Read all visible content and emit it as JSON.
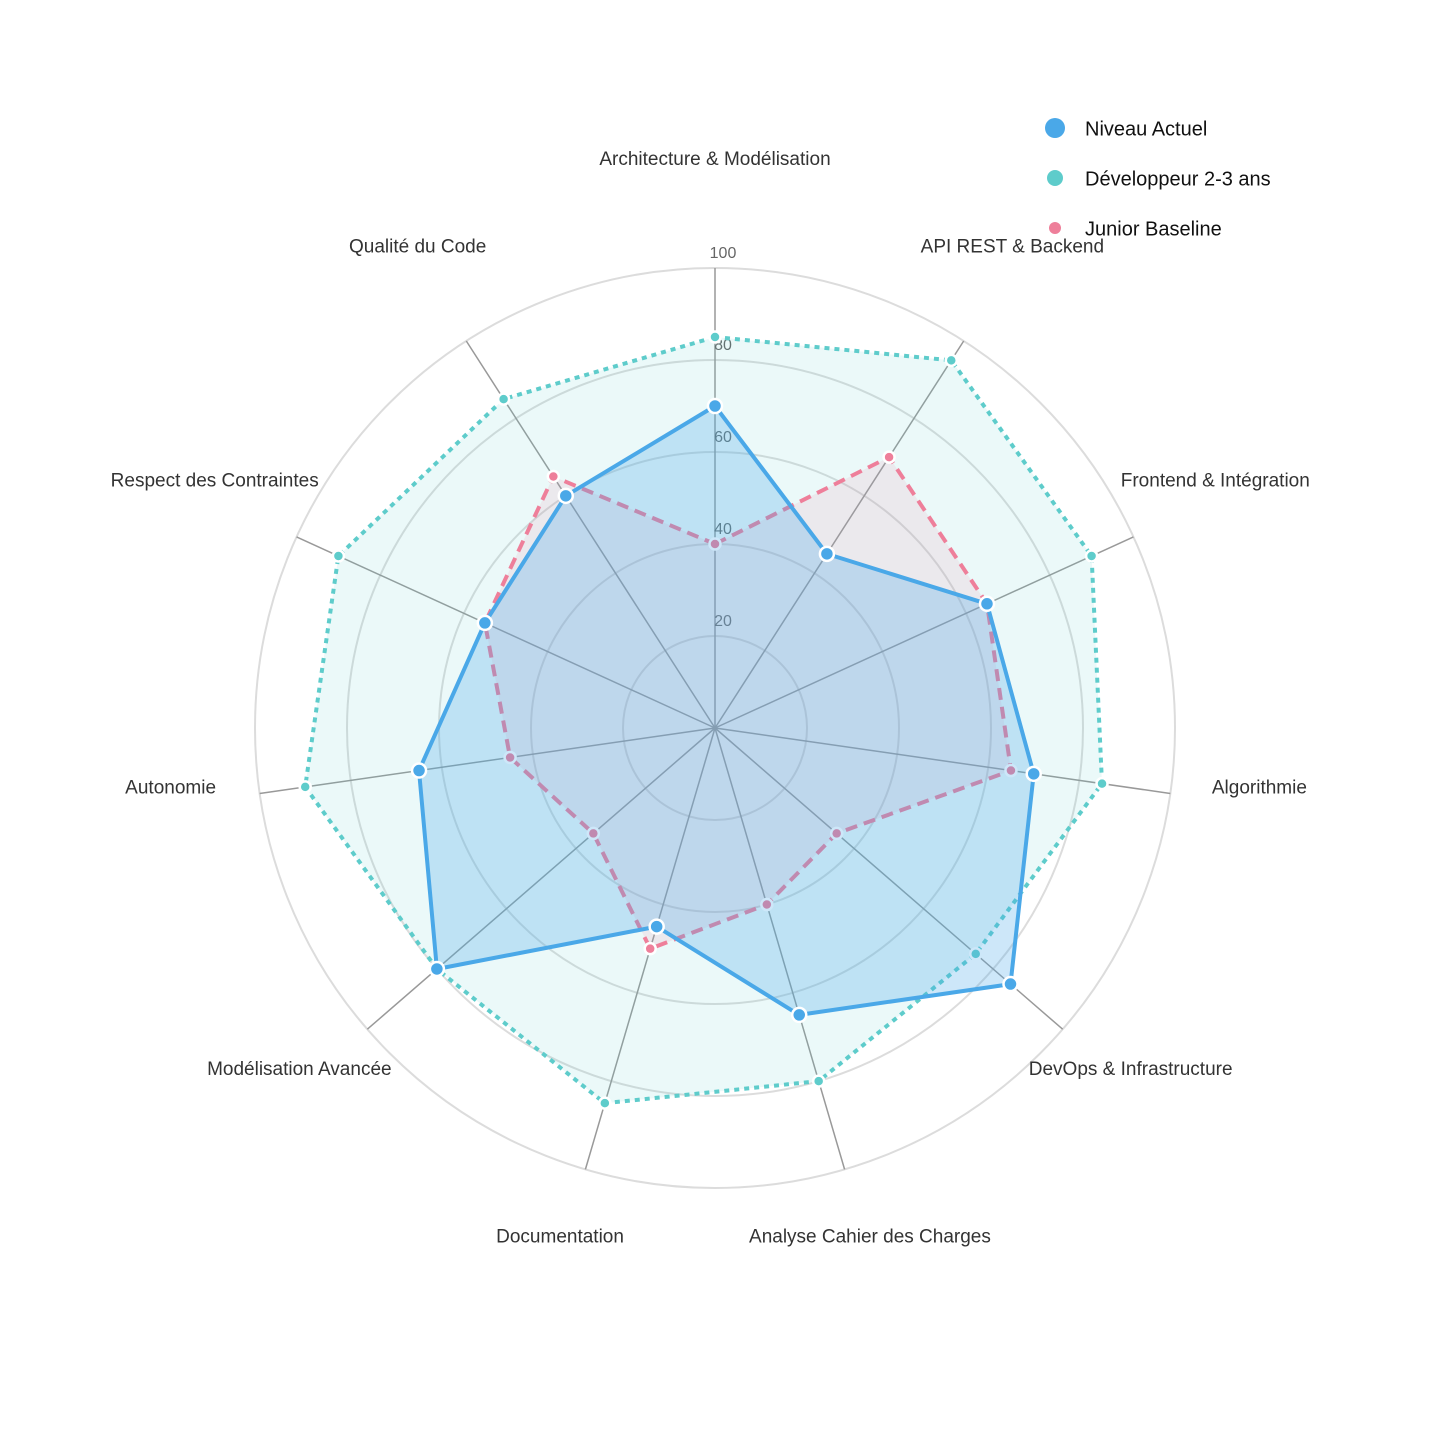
{
  "chart_data": {
    "type": "radar",
    "categories": [
      "Architecture & Modélisation",
      "API REST & Backend",
      "Frontend & Intégration",
      "Algorithmie",
      "DevOps & Infrastructure",
      "Analyse Cahier des Charges",
      "Documentation",
      "Modélisation Avancée",
      "Autonomie",
      "Respect des Contraintes",
      "Qualité du Code"
    ],
    "series": [
      {
        "name": "Niveau Actuel",
        "color": "#4aa8e8",
        "values": [
          70,
          45,
          65,
          70,
          85,
          65,
          45,
          80,
          65,
          55,
          60
        ]
      },
      {
        "name": "Développeur 2-3 ans",
        "color": "#5ecccb",
        "values": [
          85,
          95,
          90,
          85,
          75,
          80,
          85,
          80,
          90,
          90,
          85
        ]
      },
      {
        "name": "Junior Baseline",
        "color": "#ee7f9a",
        "values": [
          40,
          70,
          65,
          65,
          35,
          40,
          50,
          35,
          45,
          55,
          65
        ]
      }
    ],
    "rlim": [
      0,
      100
    ],
    "rticks": [
      20,
      40,
      60,
      80,
      100
    ]
  }
}
